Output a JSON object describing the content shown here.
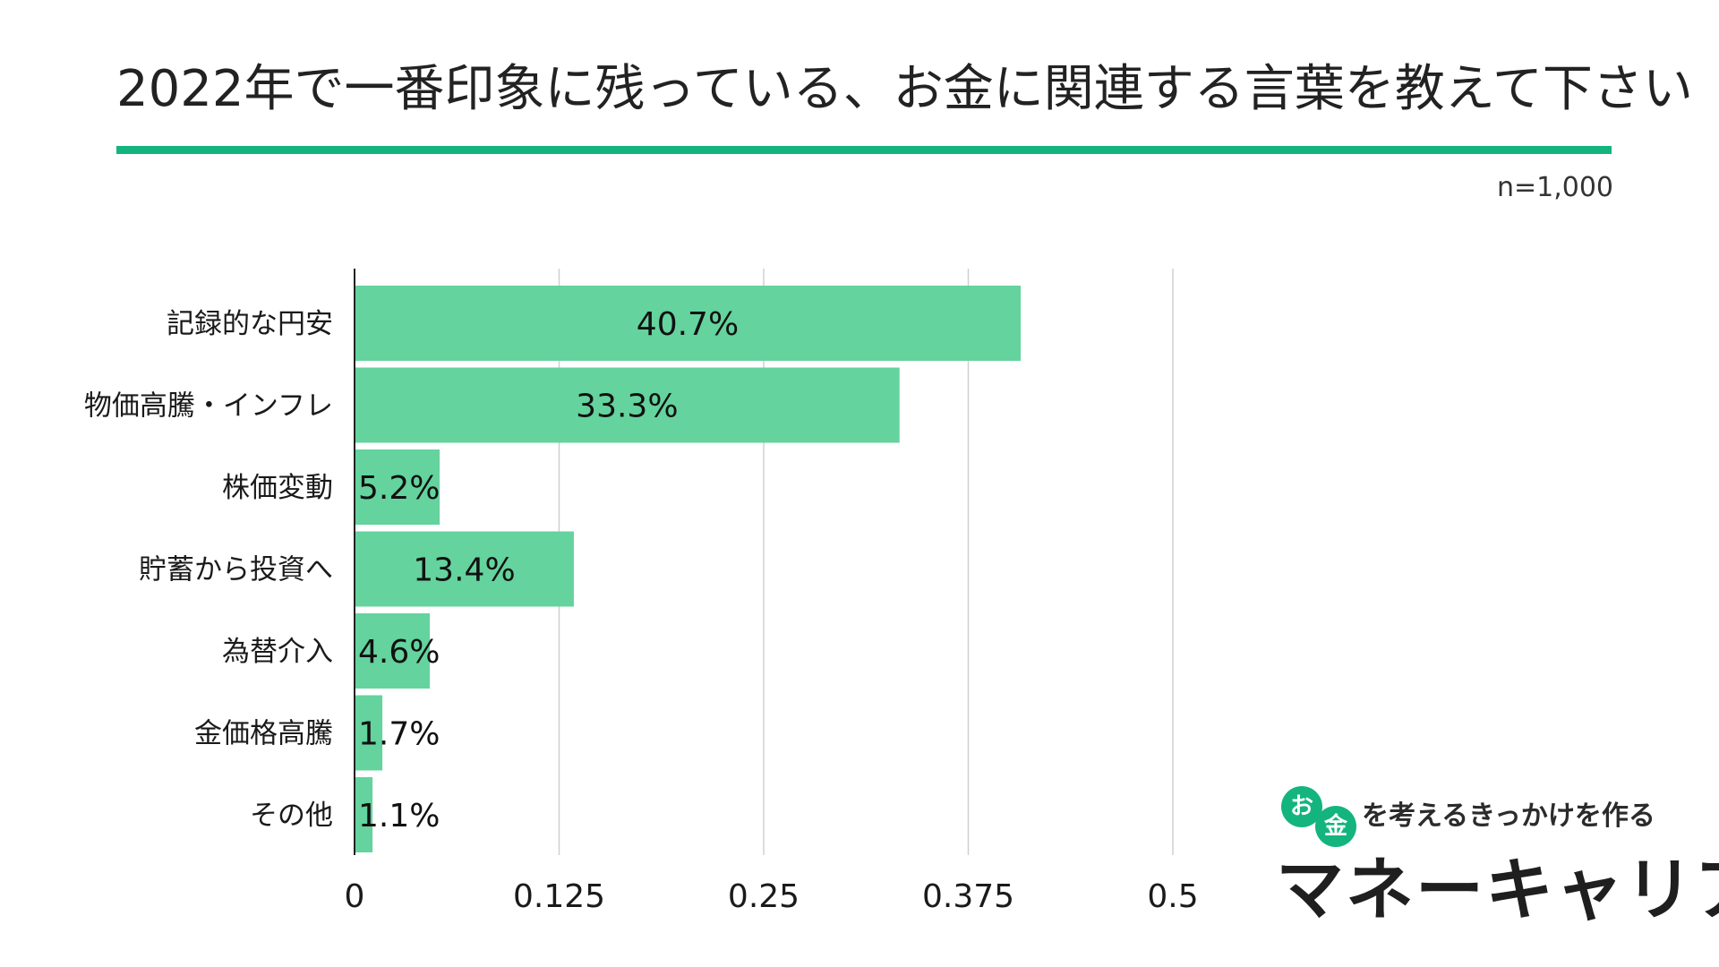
{
  "header": {
    "sample_size": "n=1,000"
  },
  "chart_data": {
    "type": "bar",
    "orientation": "horizontal",
    "title": "2022年で一番印象に残っている、お金に関連する言葉を教えて下さい",
    "categories": [
      "記録的な円安",
      "物価高騰・インフレ",
      "株価変動",
      "貯蓄から投資へ",
      "為替介入",
      "金価格高騰",
      "その他"
    ],
    "values": [
      0.407,
      0.333,
      0.052,
      0.134,
      0.046,
      0.017,
      0.011
    ],
    "data_labels": [
      "40.7%",
      "33.3%",
      "5.2%",
      "13.4%",
      "4.6%",
      "1.7%",
      "1.1%"
    ],
    "xlim": [
      0,
      0.5
    ],
    "x_ticks": [
      0,
      0.125,
      0.25,
      0.375,
      0.5
    ],
    "x_tick_labels": [
      "0",
      "0.125",
      "0.25",
      "0.375",
      "0.5"
    ],
    "grid": true,
    "legend": "none",
    "bar_color": "#64d39e"
  },
  "brand": {
    "coin_o": "お",
    "coin_kin": "金",
    "tagline": "を考えるきっかけを作る",
    "name": "マネーキャリア",
    "accent_color": "#14b47e"
  }
}
